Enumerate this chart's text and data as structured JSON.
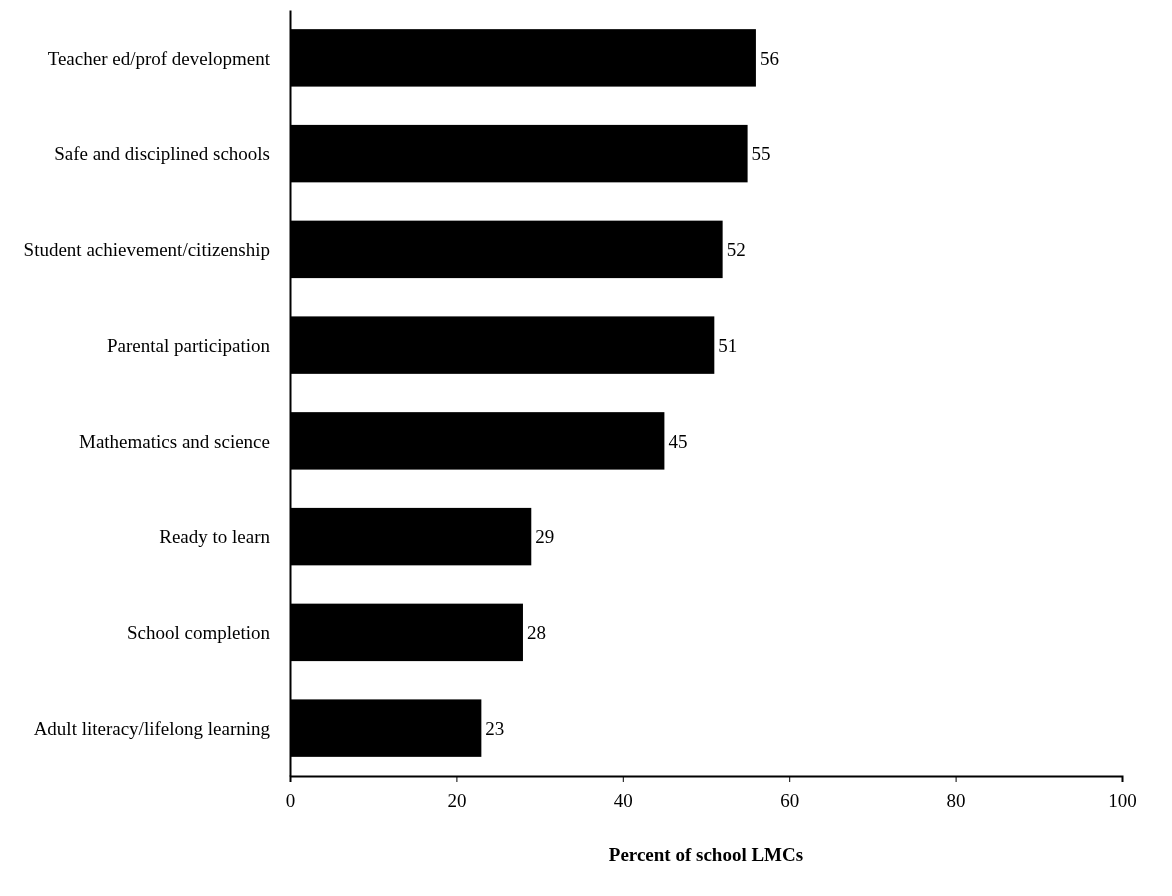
{
  "chart_data": {
    "type": "bar",
    "orientation": "horizontal",
    "xlabel": "Percent of school LMCs",
    "categories": [
      "Teacher ed/prof development",
      "Safe and disciplined schools",
      "Student achievement/citizenship",
      "Parental participation",
      "Mathematics and science",
      "Ready to learn",
      "School completion",
      "Adult literacy/lifelong learning"
    ],
    "values": [
      56,
      55,
      52,
      51,
      45,
      29,
      28,
      23
    ],
    "color": "#000000",
    "xlim": [
      0,
      100
    ],
    "xticks": [
      0,
      20,
      40,
      60,
      80,
      100
    ],
    "data_labels": true,
    "grid": false
  }
}
